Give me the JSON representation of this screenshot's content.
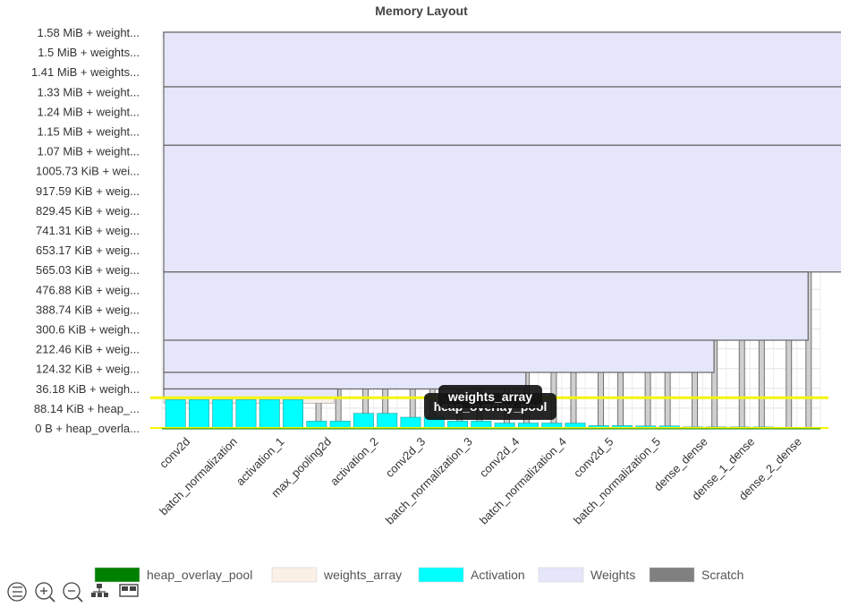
{
  "chart_data": {
    "type": "bar",
    "title": "Memory Layout",
    "y_tick_labels": [
      "0 B + heap_overla...",
      "88.14 KiB + heap_...",
      "36.18 KiB + weigh...",
      "124.32 KiB + weig...",
      "212.46 KiB + weig...",
      "300.6 KiB + weigh...",
      "388.74 KiB + weig...",
      "476.88 KiB + weig...",
      "565.03 KiB + weig...",
      "653.17 KiB + weig...",
      "741.31 KiB + weig...",
      "829.45 KiB + weig...",
      "917.59 KiB + weig...",
      "1005.73 KiB + wei...",
      "1.07 MiB + weight...",
      "1.15 MiB + weight...",
      "1.24 MiB + weight...",
      "1.33 MiB + weight...",
      "1.41 MiB + weights...",
      "1.5 MiB + weights...",
      "1.58 MiB + weight..."
    ],
    "categories": [
      "conv2d",
      "batch_normalization",
      "activation_1",
      "max_pooling2d",
      "activation_2",
      "conv2d_3",
      "batch_normalization_3",
      "conv2d_4",
      "batch_normalization_4",
      "conv2d_5",
      "batch_normalization_5",
      "dense_dense",
      "dense_1_dense",
      "dense_2_dense"
    ],
    "series": [
      {
        "name": "heap_overlay_pool",
        "color": "#008000",
        "values": [
          0,
          0,
          0,
          0,
          0,
          0,
          0,
          0,
          0,
          0,
          0,
          0,
          0,
          0
        ]
      },
      {
        "name": "weights_array",
        "color": "#faf0e6",
        "values": [
          0.5,
          0.5,
          0.5,
          0.5,
          0.5,
          0.5,
          0.5,
          0.5,
          0.5,
          0.5,
          0.5,
          0.5,
          0.5,
          0.5
        ]
      },
      {
        "name": "Activation",
        "color": "#00ffff",
        "values": [
          1.45,
          1.45,
          1.45,
          0.35,
          0.75,
          0.55,
          0.35,
          0.25,
          0.25,
          0.12,
          0.1,
          0.05,
          0.05,
          0.02
        ]
      },
      {
        "name": "Weights",
        "color": "#e6e6fa",
        "values": [
          19.9,
          19.9,
          19.9,
          19.9,
          3.0,
          3.0,
          3.0,
          3.0,
          3.0,
          3.0,
          3.0,
          3.0,
          3.0,
          3.0
        ]
      },
      {
        "name": "Scratch",
        "color": "#808080",
        "values": [
          20.0,
          20.0,
          20.0,
          20.0,
          20.0,
          20.0,
          20.0,
          20.0,
          20.0,
          20.0,
          20.0,
          20.0,
          20.0,
          20.0
        ]
      }
    ],
    "weight_blocks": [
      {
        "from": 0,
        "to": 20.0,
        "bottom": 20.0,
        "top": 20.3
      },
      {
        "from": 0,
        "to": 18.7,
        "bottom": 17.5,
        "top": 20.3
      },
      {
        "from": 0,
        "to": 17.7,
        "bottom": 14.5,
        "top": 17.5
      },
      {
        "from": 0,
        "to": 15.7,
        "bottom": 8.0,
        "top": 14.5
      },
      {
        "from": 0,
        "to": 13.7,
        "bottom": 4.5,
        "top": 8.0
      },
      {
        "from": 0,
        "to": 11.7,
        "bottom": 2.85,
        "top": 4.5
      },
      {
        "from": 0,
        "to": 7.7,
        "bottom": 2.0,
        "top": 2.85
      },
      {
        "from": 0,
        "to": 3.7,
        "bottom": 1.55,
        "top": 2.0
      }
    ],
    "ylim": [
      0,
      20.3
    ],
    "grid": true,
    "legend_position": "bottom",
    "tooltips": [
      "weights_array",
      "heap_overlay_pool"
    ],
    "highlight_line": 1.55
  },
  "toolbar": {
    "icons": [
      "list-icon",
      "zoom-in-icon",
      "zoom-out-icon",
      "hierarchy-icon",
      "layout-icon"
    ]
  }
}
